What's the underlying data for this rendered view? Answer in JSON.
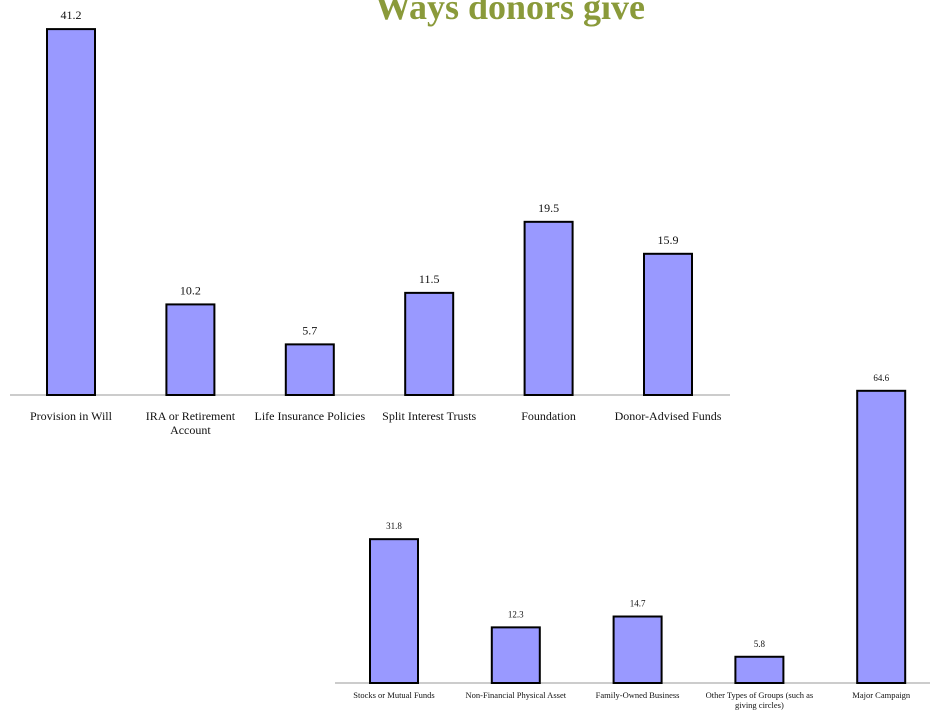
{
  "chart_data": [
    {
      "type": "bar",
      "title": "Ways donors give",
      "categories": [
        "Provision in Will",
        "IRA or Retirement Account",
        "Life Insurance Policies",
        "Split Interest Trusts",
        "Foundation",
        "Donor-Advised Funds"
      ],
      "values": [
        41.2,
        10.2,
        5.7,
        11.5,
        19.5,
        15.9
      ],
      "color": "#9999ff",
      "ylim": [
        0,
        42
      ]
    },
    {
      "type": "bar",
      "categories": [
        "Stocks or Mutual Funds",
        "Non-Financial Physical Asset",
        "Family-Owned Business",
        "Other Types of Groups (such as giving circles)",
        "Major Campaign"
      ],
      "values": [
        31.8,
        12.3,
        14.7,
        5.8,
        64.6
      ],
      "color": "#9999ff",
      "ylim": [
        0,
        65
      ]
    }
  ]
}
